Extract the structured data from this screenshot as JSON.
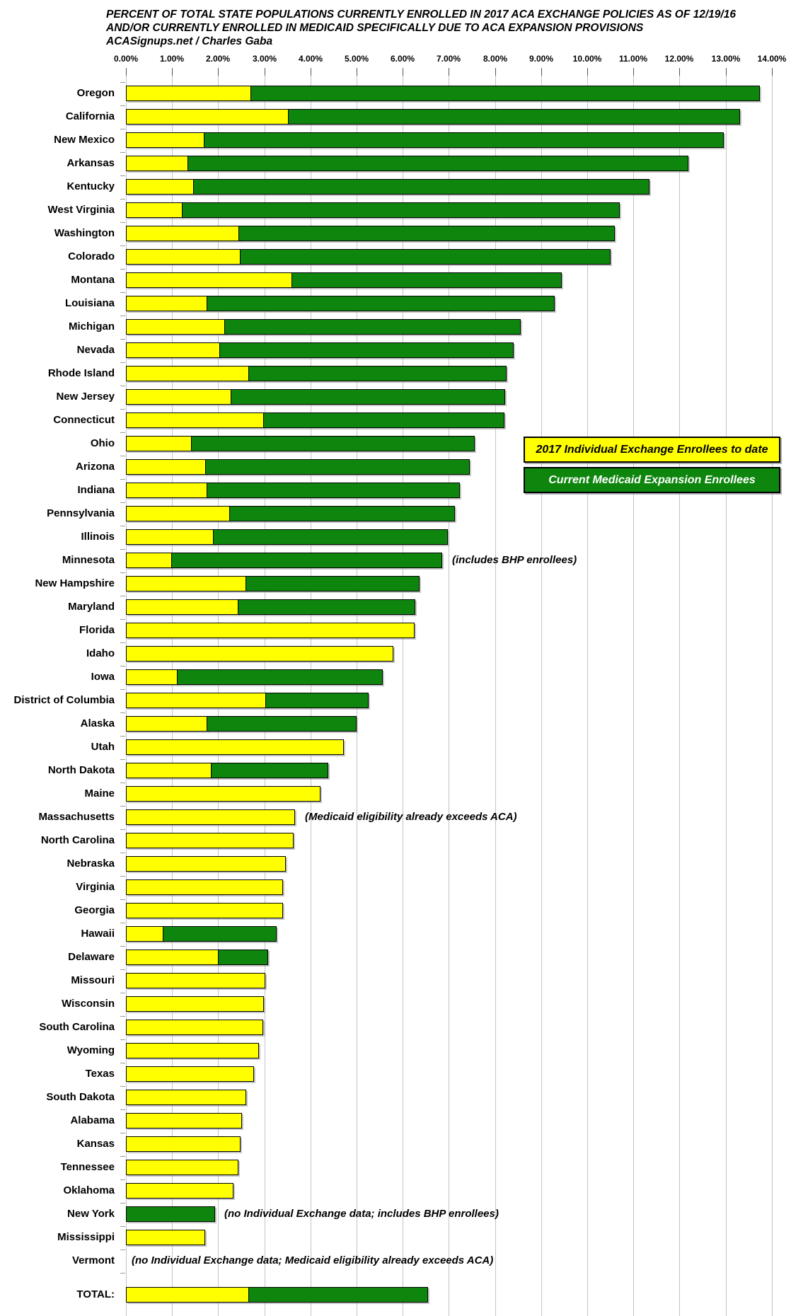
{
  "title": {
    "line1": "PERCENT OF TOTAL STATE POPULATIONS CURRENTLY ENROLLED IN 2017 ACA EXCHANGE POLICIES AS OF 12/19/16",
    "line2": "AND/OR CURRENTLY ENROLLED IN MEDICAID SPECIFICALLY DUE TO ACA EXPANSION PROVISIONS",
    "attribution": "ACASignups.net / Charles Gaba"
  },
  "legend": {
    "exchange_label": "2017 Individual Exchange Enrollees to date",
    "medicaid_label": "Current Medicaid Expansion Enrollees"
  },
  "colors": {
    "exchange": "#ffff00",
    "medicaid": "#0e860e",
    "gridline": "#c3c3c3"
  },
  "chart_data": {
    "type": "bar",
    "orientation": "horizontal",
    "stacked": true,
    "title": "PERCENT OF TOTAL STATE POPULATIONS CURRENTLY ENROLLED IN 2017 ACA EXCHANGE POLICIES AS OF 12/19/16 AND/OR CURRENTLY ENROLLED IN MEDICAID SPECIFICALLY DUE TO ACA EXPANSION PROVISIONS",
    "source": "ACASignups.net / Charles Gaba",
    "xlabel": "",
    "ylabel": "",
    "xlim": [
      0,
      14
    ],
    "x_tick_step": 1,
    "x_tick_labels": [
      "0.00%",
      "1.00%",
      "2.00%",
      "3.00%",
      "4.00%",
      "5.00%",
      "6.00%",
      "7.00%",
      "8.00%",
      "9.00%",
      "10.00%",
      "11.00%",
      "12.00%",
      "13.00%",
      "14.00%"
    ],
    "grid": true,
    "legend_position": "right-middle",
    "series_names": [
      "2017 Individual Exchange Enrollees to date",
      "Current Medicaid Expansion Enrollees"
    ],
    "rows": [
      {
        "state": "Oregon",
        "exchange": 2.72,
        "medicaid": 11.03,
        "total": 13.75,
        "note": ""
      },
      {
        "state": "California",
        "exchange": 3.52,
        "medicaid": 9.78,
        "total": 13.3,
        "note": ""
      },
      {
        "state": "New Mexico",
        "exchange": 1.7,
        "medicaid": 11.25,
        "total": 12.95,
        "note": ""
      },
      {
        "state": "Arkansas",
        "exchange": 1.35,
        "medicaid": 10.85,
        "total": 12.2,
        "note": ""
      },
      {
        "state": "Kentucky",
        "exchange": 1.48,
        "medicaid": 9.87,
        "total": 11.35,
        "note": ""
      },
      {
        "state": "West Virginia",
        "exchange": 1.22,
        "medicaid": 9.48,
        "total": 10.7,
        "note": ""
      },
      {
        "state": "Washington",
        "exchange": 2.45,
        "medicaid": 8.15,
        "total": 10.6,
        "note": ""
      },
      {
        "state": "Colorado",
        "exchange": 2.48,
        "medicaid": 8.02,
        "total": 10.5,
        "note": ""
      },
      {
        "state": "Montana",
        "exchange": 3.6,
        "medicaid": 5.85,
        "total": 9.45,
        "note": ""
      },
      {
        "state": "Louisiana",
        "exchange": 1.77,
        "medicaid": 7.53,
        "total": 9.3,
        "note": ""
      },
      {
        "state": "Michigan",
        "exchange": 2.14,
        "medicaid": 6.41,
        "total": 8.55,
        "note": ""
      },
      {
        "state": "Nevada",
        "exchange": 2.04,
        "medicaid": 6.36,
        "total": 8.4,
        "note": ""
      },
      {
        "state": "Rhode Island",
        "exchange": 2.67,
        "medicaid": 5.58,
        "total": 8.25,
        "note": ""
      },
      {
        "state": "New Jersey",
        "exchange": 2.28,
        "medicaid": 5.94,
        "total": 8.22,
        "note": ""
      },
      {
        "state": "Connecticut",
        "exchange": 2.99,
        "medicaid": 5.21,
        "total": 8.2,
        "note": ""
      },
      {
        "state": "Ohio",
        "exchange": 1.42,
        "medicaid": 6.13,
        "total": 7.55,
        "note": ""
      },
      {
        "state": "Arizona",
        "exchange": 1.73,
        "medicaid": 5.72,
        "total": 7.45,
        "note": ""
      },
      {
        "state": "Indiana",
        "exchange": 1.77,
        "medicaid": 5.48,
        "total": 7.25,
        "note": ""
      },
      {
        "state": "Pennsylvania",
        "exchange": 2.26,
        "medicaid": 4.87,
        "total": 7.13,
        "note": ""
      },
      {
        "state": "Illinois",
        "exchange": 1.9,
        "medicaid": 5.07,
        "total": 6.97,
        "note": ""
      },
      {
        "state": "Minnesota",
        "exchange": 0.99,
        "medicaid": 5.86,
        "total": 6.85,
        "note": "(includes BHP enrollees)"
      },
      {
        "state": "New Hampshire",
        "exchange": 2.6,
        "medicaid": 3.75,
        "total": 6.35,
        "note": ""
      },
      {
        "state": "Maryland",
        "exchange": 2.44,
        "medicaid": 3.84,
        "total": 6.28,
        "note": ""
      },
      {
        "state": "Florida",
        "exchange": 6.25,
        "medicaid": 0,
        "total": 6.25,
        "note": ""
      },
      {
        "state": "Idaho",
        "exchange": 5.8,
        "medicaid": 0,
        "total": 5.8,
        "note": ""
      },
      {
        "state": "Iowa",
        "exchange": 1.12,
        "medicaid": 4.45,
        "total": 5.57,
        "note": ""
      },
      {
        "state": "District of Columbia",
        "exchange": 3.04,
        "medicaid": 2.22,
        "total": 5.26,
        "note": ""
      },
      {
        "state": "Alaska",
        "exchange": 1.77,
        "medicaid": 3.24,
        "total": 5.01,
        "note": ""
      },
      {
        "state": "Utah",
        "exchange": 4.72,
        "medicaid": 0,
        "total": 4.72,
        "note": ""
      },
      {
        "state": "North Dakota",
        "exchange": 1.85,
        "medicaid": 2.53,
        "total": 4.38,
        "note": ""
      },
      {
        "state": "Maine",
        "exchange": 4.22,
        "medicaid": 0,
        "total": 4.22,
        "note": ""
      },
      {
        "state": "Massachusetts",
        "exchange": 3.67,
        "medicaid": 0,
        "total": 3.67,
        "note": "(Medicaid eligibility already exceeds ACA)"
      },
      {
        "state": "North Carolina",
        "exchange": 3.64,
        "medicaid": 0,
        "total": 3.64,
        "note": ""
      },
      {
        "state": "Nebraska",
        "exchange": 3.46,
        "medicaid": 0,
        "total": 3.46,
        "note": ""
      },
      {
        "state": "Virginia",
        "exchange": 3.41,
        "medicaid": 0,
        "total": 3.41,
        "note": ""
      },
      {
        "state": "Georgia",
        "exchange": 3.4,
        "medicaid": 0,
        "total": 3.4,
        "note": ""
      },
      {
        "state": "Hawaii",
        "exchange": 0.81,
        "medicaid": 2.45,
        "total": 3.26,
        "note": ""
      },
      {
        "state": "Delaware",
        "exchange": 2.01,
        "medicaid": 1.07,
        "total": 3.08,
        "note": ""
      },
      {
        "state": "Missouri",
        "exchange": 3.02,
        "medicaid": 0,
        "total": 3.02,
        "note": ""
      },
      {
        "state": "Wisconsin",
        "exchange": 2.99,
        "medicaid": 0,
        "total": 2.99,
        "note": ""
      },
      {
        "state": "South Carolina",
        "exchange": 2.97,
        "medicaid": 0,
        "total": 2.97,
        "note": ""
      },
      {
        "state": "Wyoming",
        "exchange": 2.89,
        "medicaid": 0,
        "total": 2.89,
        "note": ""
      },
      {
        "state": "Texas",
        "exchange": 2.77,
        "medicaid": 0,
        "total": 2.77,
        "note": ""
      },
      {
        "state": "South Dakota",
        "exchange": 2.6,
        "medicaid": 0,
        "total": 2.6,
        "note": ""
      },
      {
        "state": "Alabama",
        "exchange": 2.52,
        "medicaid": 0,
        "total": 2.52,
        "note": ""
      },
      {
        "state": "Kansas",
        "exchange": 2.49,
        "medicaid": 0,
        "total": 2.49,
        "note": ""
      },
      {
        "state": "Tennessee",
        "exchange": 2.44,
        "medicaid": 0,
        "total": 2.44,
        "note": ""
      },
      {
        "state": "Oklahoma",
        "exchange": 2.33,
        "medicaid": 0,
        "total": 2.33,
        "note": ""
      },
      {
        "state": "New York",
        "exchange": 0,
        "medicaid": 1.92,
        "total": 1.92,
        "note": "(no Individual Exchange data; includes BHP enrollees)"
      },
      {
        "state": "Mississippi",
        "exchange": 1.72,
        "medicaid": 0,
        "total": 1.72,
        "note": ""
      },
      {
        "state": "Vermont",
        "exchange": 0,
        "medicaid": 0,
        "total": 0,
        "note": "(no Individual Exchange data; Medicaid eligibility already exceeds ACA)"
      }
    ],
    "total_row": {
      "state": "TOTAL:",
      "exchange": 2.67,
      "medicaid": 3.88,
      "total": 6.55,
      "note": ""
    }
  }
}
